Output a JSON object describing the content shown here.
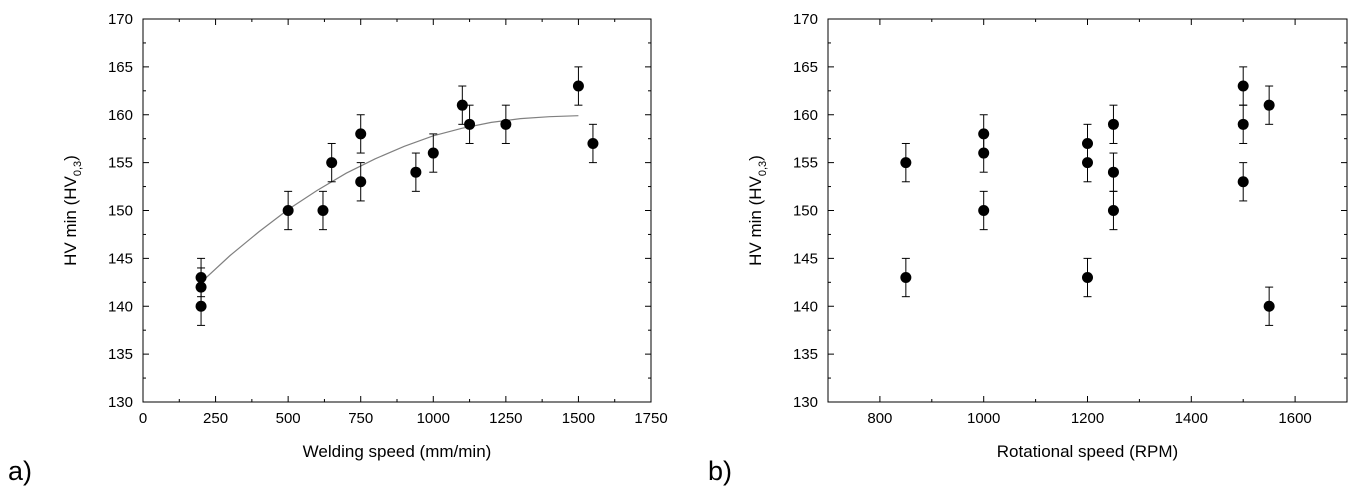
{
  "chart_data": [
    {
      "type": "scatter",
      "panel_label": "a)",
      "title": "",
      "xlabel": "Welding speed (mm/min)",
      "ylabel_main": "HV min (HV",
      "ylabel_sub": "0,3",
      "ylabel_close": ")",
      "xlim": [
        0,
        1750
      ],
      "ylim": [
        130,
        170
      ],
      "xticks": [
        0,
        250,
        500,
        750,
        1000,
        1250,
        1500,
        1750
      ],
      "yticks": [
        130,
        135,
        140,
        145,
        150,
        155,
        160,
        165,
        170
      ],
      "grid": false,
      "legend": "none",
      "marker_color": "#000000",
      "fit_color": "#808080",
      "points": [
        {
          "x": 200,
          "y": 140,
          "err": 2
        },
        {
          "x": 200,
          "y": 142,
          "err": 2
        },
        {
          "x": 200,
          "y": 143,
          "err": 2
        },
        {
          "x": 500,
          "y": 150,
          "err": 2
        },
        {
          "x": 620,
          "y": 150,
          "err": 2
        },
        {
          "x": 650,
          "y": 155,
          "err": 2
        },
        {
          "x": 750,
          "y": 153,
          "err": 2
        },
        {
          "x": 750,
          "y": 158,
          "err": 2
        },
        {
          "x": 940,
          "y": 154,
          "err": 2
        },
        {
          "x": 1000,
          "y": 156,
          "err": 2
        },
        {
          "x": 1100,
          "y": 161,
          "err": 2
        },
        {
          "x": 1125,
          "y": 159,
          "err": 2
        },
        {
          "x": 1250,
          "y": 159,
          "err": 2
        },
        {
          "x": 1500,
          "y": 163,
          "err": 2
        },
        {
          "x": 1550,
          "y": 157,
          "err": 2
        }
      ],
      "fit_curve": {
        "x": [
          200,
          300,
          400,
          500,
          600,
          700,
          800,
          900,
          1000,
          1100,
          1200,
          1300,
          1400,
          1500
        ],
        "y": [
          142.5,
          145.3,
          147.8,
          150.1,
          152.1,
          153.9,
          155.4,
          156.7,
          157.8,
          158.6,
          159.2,
          159.6,
          159.8,
          159.9
        ]
      }
    },
    {
      "type": "scatter",
      "panel_label": "b)",
      "title": "",
      "xlabel": "Rotational speed (RPM)",
      "ylabel_main": "HV min (HV",
      "ylabel_sub": "0,3",
      "ylabel_close": ")",
      "xlim": [
        700,
        1700
      ],
      "ylim": [
        130,
        170
      ],
      "xticks": [
        800,
        1000,
        1200,
        1400,
        1600
      ],
      "yticks": [
        130,
        135,
        140,
        145,
        150,
        155,
        160,
        165,
        170
      ],
      "grid": false,
      "legend": "none",
      "marker_color": "#000000",
      "points": [
        {
          "x": 850,
          "y": 143,
          "err": 2
        },
        {
          "x": 850,
          "y": 155,
          "err": 2
        },
        {
          "x": 1000,
          "y": 150,
          "err": 2
        },
        {
          "x": 1000,
          "y": 156,
          "err": 2
        },
        {
          "x": 1000,
          "y": 158,
          "err": 2
        },
        {
          "x": 1200,
          "y": 143,
          "err": 2
        },
        {
          "x": 1200,
          "y": 155,
          "err": 2
        },
        {
          "x": 1200,
          "y": 157,
          "err": 2
        },
        {
          "x": 1250,
          "y": 150,
          "err": 2
        },
        {
          "x": 1250,
          "y": 154,
          "err": 2
        },
        {
          "x": 1250,
          "y": 159,
          "err": 2
        },
        {
          "x": 1500,
          "y": 153,
          "err": 2
        },
        {
          "x": 1500,
          "y": 159,
          "err": 2
        },
        {
          "x": 1500,
          "y": 163,
          "err": 2
        },
        {
          "x": 1550,
          "y": 140,
          "err": 2
        },
        {
          "x": 1550,
          "y": 161,
          "err": 2
        }
      ]
    }
  ]
}
